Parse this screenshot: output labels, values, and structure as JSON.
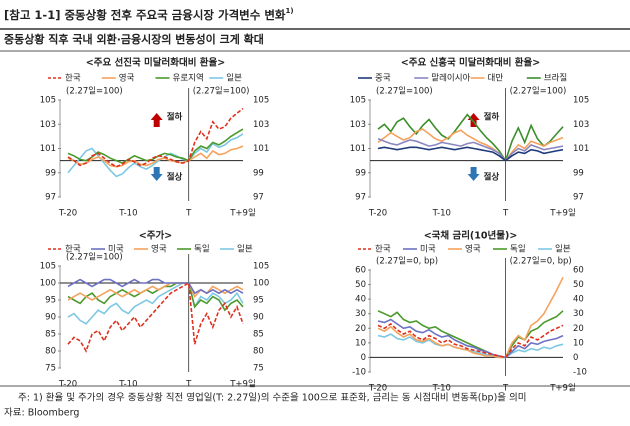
{
  "header": {
    "title": "[참고 1-1] 중동상황 전후 주요국 금융시장 가격변수 변화",
    "title_note": "1)",
    "subtitle": "중동상황 직후 국내 외환·금융시장의 변동성이 크게 확대"
  },
  "chart_data": [
    {
      "type": "line",
      "title": "<주요 선진국 미달러화대비 환율>",
      "categories": [
        "T-20",
        null,
        null,
        null,
        null,
        null,
        null,
        null,
        null,
        null,
        "T-10",
        null,
        null,
        null,
        null,
        null,
        null,
        null,
        null,
        null,
        "T",
        null,
        null,
        null,
        null,
        null,
        null,
        null,
        null,
        "T+9일"
      ],
      "vline": "T",
      "hline": 100,
      "ylim": [
        97,
        105
      ],
      "yticks": [
        97,
        99,
        101,
        103,
        105
      ],
      "annotations": [
        "(2.27일=100)",
        "(2.27일=100)"
      ],
      "arrow_labels": [
        "절하",
        "절상"
      ],
      "series": [
        {
          "name": "한국",
          "color": "#e0301e",
          "dash": true,
          "values": [
            100.3,
            100.0,
            99.6,
            99.8,
            100.4,
            100.6,
            100.2,
            99.8,
            99.5,
            99.7,
            100.1,
            99.9,
            99.6,
            99.8,
            100.2,
            100.4,
            100.3,
            100.1,
            99.9,
            99.8,
            100.0,
            101.5,
            102.4,
            101.8,
            103.2,
            102.6,
            102.8,
            103.5,
            103.9,
            104.3
          ]
        },
        {
          "name": "영국",
          "color": "#f5a25d",
          "dash": false,
          "values": [
            100.2,
            100.0,
            99.7,
            99.8,
            100.1,
            100.3,
            100.0,
            99.6,
            99.5,
            99.6,
            99.9,
            100.0,
            99.7,
            99.6,
            99.8,
            100.1,
            100.2,
            100.0,
            99.9,
            99.8,
            100.0,
            100.3,
            100.6,
            100.2,
            100.8,
            100.5,
            100.6,
            100.9,
            101.0,
            101.2
          ]
        },
        {
          "name": "유로지역",
          "color": "#4a9a2a",
          "dash": false,
          "values": [
            100.6,
            100.4,
            100.1,
            100.0,
            100.3,
            100.7,
            100.5,
            100.2,
            100.0,
            99.8,
            100.1,
            100.4,
            100.2,
            100.0,
            100.1,
            100.4,
            100.6,
            100.5,
            100.3,
            100.2,
            100.0,
            100.8,
            101.2,
            101.0,
            101.5,
            101.3,
            101.6,
            102.0,
            102.3,
            102.6
          ]
        },
        {
          "name": "일본",
          "color": "#7ec8e3",
          "dash": false,
          "values": [
            99.0,
            99.6,
            100.2,
            100.8,
            101.0,
            100.4,
            99.8,
            99.2,
            98.7,
            98.9,
            99.4,
            99.8,
            99.5,
            99.3,
            99.6,
            100.0,
            100.3,
            100.6,
            100.4,
            100.1,
            100.0,
            100.6,
            101.0,
            100.7,
            101.4,
            101.1,
            101.3,
            101.7,
            101.9,
            102.2
          ]
        }
      ]
    },
    {
      "type": "line",
      "title": "<주요 신흥국 미달러화대비 환율>",
      "categories": [
        "T-20",
        null,
        null,
        null,
        null,
        null,
        null,
        null,
        null,
        null,
        "T-10",
        null,
        null,
        null,
        null,
        null,
        null,
        null,
        null,
        null,
        "T",
        null,
        null,
        null,
        null,
        null,
        null,
        null,
        null,
        "T+9일"
      ],
      "vline": "T",
      "hline": 100,
      "ylim": [
        97,
        105
      ],
      "yticks": [
        97,
        99,
        101,
        103,
        105
      ],
      "annotations": [
        "(2.27일=100)",
        "(2.27일=100)"
      ],
      "arrow_labels": [
        "절하",
        "절상"
      ],
      "series": [
        {
          "name": "중국",
          "color": "#1f3a7a",
          "dash": false,
          "values": [
            101.0,
            101.1,
            101.0,
            100.9,
            101.0,
            101.1,
            101.1,
            101.0,
            100.9,
            101.0,
            101.1,
            101.0,
            100.9,
            101.0,
            101.1,
            101.0,
            100.9,
            100.8,
            100.7,
            100.4,
            100.0,
            100.4,
            100.7,
            100.6,
            100.9,
            100.8,
            100.6,
            100.7,
            100.8,
            100.9
          ]
        },
        {
          "name": "말레이시아",
          "color": "#8a87c0",
          "dash": false,
          "values": [
            101.8,
            101.6,
            101.4,
            101.3,
            101.5,
            101.7,
            101.6,
            101.4,
            101.2,
            101.3,
            101.5,
            101.4,
            101.3,
            101.2,
            101.4,
            101.5,
            101.3,
            101.1,
            100.9,
            100.6,
            100.0,
            100.6,
            101.0,
            100.8,
            101.3,
            101.1,
            100.9,
            101.0,
            101.1,
            101.2
          ]
        },
        {
          "name": "대만",
          "color": "#f5a25d",
          "dash": false,
          "values": [
            101.5,
            101.9,
            102.3,
            102.0,
            101.7,
            101.9,
            102.4,
            102.6,
            102.2,
            101.8,
            101.6,
            101.9,
            102.3,
            102.5,
            102.1,
            101.8,
            101.5,
            101.3,
            101.0,
            100.6,
            100.0,
            100.7,
            101.3,
            101.0,
            101.6,
            101.4,
            101.2,
            101.5,
            101.7,
            101.9
          ]
        },
        {
          "name": "브라질",
          "color": "#3a8f2a",
          "dash": false,
          "values": [
            102.6,
            103.0,
            102.4,
            103.2,
            103.5,
            102.8,
            102.2,
            102.9,
            103.4,
            102.7,
            102.1,
            101.8,
            102.4,
            103.1,
            103.8,
            103.2,
            102.5,
            101.9,
            101.4,
            100.8,
            100.0,
            101.6,
            102.7,
            101.5,
            102.9,
            101.8,
            101.2,
            101.6,
            102.2,
            102.8
          ]
        }
      ]
    },
    {
      "type": "line",
      "title": "<주가>",
      "categories": [
        "T-20",
        null,
        null,
        null,
        null,
        null,
        null,
        null,
        null,
        null,
        "T-10",
        null,
        null,
        null,
        null,
        null,
        null,
        null,
        null,
        null,
        "T",
        null,
        null,
        null,
        null,
        null,
        null,
        null,
        null,
        "T+9일"
      ],
      "vline": "T",
      "hline": 100,
      "ylim": [
        75,
        105
      ],
      "yticks": [
        75,
        80,
        85,
        90,
        95,
        100,
        105
      ],
      "annotations": [
        "(2.27일=100)"
      ],
      "series": [
        {
          "name": "한국",
          "color": "#e0301e",
          "dash": true,
          "values": [
            82,
            84,
            83,
            80,
            85,
            86,
            83,
            87,
            89,
            86,
            88,
            90,
            87,
            89,
            91,
            93,
            95,
            97,
            98,
            99,
            100,
            82,
            88,
            91,
            87,
            92,
            94,
            90,
            93,
            88
          ]
        },
        {
          "name": "미국",
          "color": "#6d72c3",
          "dash": false,
          "values": [
            99,
            100,
            101,
            100,
            99,
            100,
            101,
            101,
            100,
            99,
            100,
            101,
            100,
            100,
            101,
            101,
            100,
            100,
            100,
            100,
            100,
            97,
            98,
            97,
            98,
            97,
            98,
            97,
            98,
            97
          ]
        },
        {
          "name": "영국",
          "color": "#f5a25d",
          "dash": false,
          "values": [
            95,
            96,
            97,
            96,
            95,
            96,
            97,
            98,
            97,
            96,
            97,
            98,
            97,
            98,
            99,
            98,
            99,
            100,
            100,
            100,
            100,
            96,
            98,
            97,
            99,
            98,
            97,
            98,
            99,
            98
          ]
        },
        {
          "name": "독일",
          "color": "#4a9a2a",
          "dash": false,
          "values": [
            96,
            95,
            94,
            96,
            97,
            95,
            94,
            96,
            97,
            98,
            97,
            96,
            97,
            98,
            97,
            98,
            99,
            99,
            100,
            100,
            100,
            93,
            95,
            94,
            96,
            95,
            92,
            94,
            95,
            93
          ]
        },
        {
          "name": "일본",
          "color": "#7ec8e3",
          "dash": false,
          "values": [
            90,
            91,
            89,
            88,
            90,
            92,
            91,
            93,
            94,
            92,
            91,
            93,
            94,
            95,
            94,
            96,
            97,
            98,
            99,
            100,
            100,
            93,
            96,
            95,
            97,
            96,
            94,
            95,
            97,
            94
          ]
        }
      ]
    },
    {
      "type": "line",
      "title": "<국채 금리(10년물)>",
      "categories": [
        "T-20",
        null,
        null,
        null,
        null,
        null,
        null,
        null,
        null,
        null,
        "T-10",
        null,
        null,
        null,
        null,
        null,
        null,
        null,
        null,
        null,
        "T",
        null,
        null,
        null,
        null,
        null,
        null,
        null,
        null,
        "T+9일"
      ],
      "vline": "T",
      "hline": 0,
      "ylim": [
        -10,
        60
      ],
      "yticks": [
        -10,
        0,
        10,
        20,
        30,
        40,
        50,
        60
      ],
      "annotations": [
        "(2.27일=0, bp)",
        "(2.27일=0, bp)"
      ],
      "series": [
        {
          "name": "한국",
          "color": "#e0301e",
          "dash": true,
          "values": [
            22,
            20,
            23,
            19,
            16,
            18,
            14,
            12,
            15,
            13,
            10,
            12,
            9,
            8,
            6,
            5,
            4,
            3,
            2,
            1,
            0,
            6,
            10,
            8,
            14,
            12,
            15,
            18,
            20,
            22
          ]
        },
        {
          "name": "미국",
          "color": "#6d72c3",
          "dash": false,
          "values": [
            25,
            24,
            26,
            23,
            20,
            21,
            18,
            17,
            19,
            16,
            14,
            15,
            12,
            10,
            8,
            7,
            5,
            4,
            2,
            1,
            0,
            4,
            8,
            6,
            10,
            9,
            11,
            12,
            13,
            15
          ]
        },
        {
          "name": "영국",
          "color": "#f5a25d",
          "dash": false,
          "values": [
            20,
            18,
            21,
            17,
            14,
            16,
            12,
            11,
            13,
            10,
            8,
            9,
            7,
            6,
            5,
            3,
            2,
            1,
            1,
            0,
            0,
            10,
            15,
            12,
            22,
            25,
            30,
            38,
            46,
            55
          ]
        },
        {
          "name": "독일",
          "color": "#4a9a2a",
          "dash": false,
          "values": [
            32,
            30,
            28,
            31,
            26,
            24,
            25,
            22,
            20,
            21,
            18,
            16,
            14,
            12,
            10,
            8,
            6,
            4,
            2,
            1,
            0,
            8,
            14,
            12,
            18,
            20,
            24,
            26,
            28,
            32
          ]
        },
        {
          "name": "일본",
          "color": "#7ec8e3",
          "dash": false,
          "values": [
            15,
            14,
            16,
            13,
            12,
            14,
            11,
            10,
            12,
            9,
            8,
            9,
            7,
            6,
            5,
            4,
            3,
            2,
            1,
            0,
            0,
            3,
            5,
            4,
            6,
            5,
            7,
            6,
            8,
            9
          ]
        }
      ]
    }
  ],
  "footer": {
    "note": "주: 1) 환율 및 주가의 경우 중동상황 직전 영업일(T: 2.27일)의 수준을 100으로 표준화, 금리는 동 시점대비 변동폭(bp)을 의미",
    "source": "자료: Bloomberg"
  }
}
